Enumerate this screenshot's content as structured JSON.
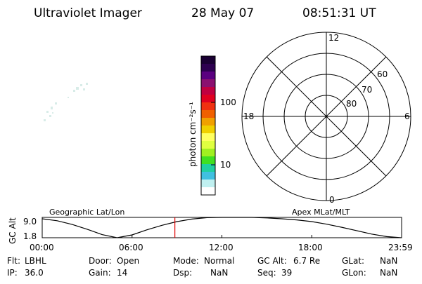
{
  "header": {
    "title": "Ultraviolet Imager",
    "date": "28 May 07",
    "time": "08:51:31 UT"
  },
  "colorbar": {
    "label": "photon cm⁻²s⁻¹",
    "ticks": [
      "100",
      "10"
    ],
    "colors": [
      "#1a0033",
      "#2d0050",
      "#5a0080",
      "#8a1070",
      "#c00040",
      "#e00020",
      "#f03010",
      "#f06000",
      "#f0a000",
      "#f0d000",
      "#ffff60",
      "#e0ff40",
      "#a0f020",
      "#40e020",
      "#20d0a0",
      "#40c0e0",
      "#c0f0f0",
      "#ffffff"
    ]
  },
  "polar": {
    "mlt_labels": {
      "top": "12",
      "left": "18",
      "right": "6",
      "bottom": "0"
    },
    "lat_labels": [
      "60",
      "70",
      "80"
    ]
  },
  "orbit": {
    "left_label": "Geographic Lat/Lon",
    "right_label": "Apex MLat/MLT",
    "y_axis_label": "GC Alt",
    "y_ticks": [
      "9.0",
      "1.8"
    ],
    "x_ticks": [
      "00:00",
      "06:00",
      "12:00",
      "18:00",
      "23:59"
    ],
    "marker_color": "#e00000",
    "chart_data": {
      "type": "line",
      "xlabel": "",
      "ylabel": "GC Alt",
      "ylim": [
        1.8,
        9.0
      ],
      "x": [
        0,
        1,
        2,
        3,
        4,
        5,
        6,
        7,
        8,
        9,
        10,
        11,
        12,
        13,
        14,
        15,
        16,
        17,
        18,
        19,
        20,
        21,
        22,
        23,
        23.98
      ],
      "values": [
        8.5,
        7.8,
        6.5,
        4.8,
        2.9,
        1.8,
        2.8,
        4.6,
        6.2,
        7.5,
        8.4,
        8.9,
        9.0,
        9.0,
        9.0,
        8.8,
        8.5,
        8.1,
        7.5,
        6.6,
        5.5,
        4.3,
        3.1,
        2.2,
        1.8
      ],
      "current_time": 8.86
    }
  },
  "status": {
    "row1": [
      {
        "label": "Flt:",
        "value": "LBHL"
      },
      {
        "label": "Door:",
        "value": "Open"
      },
      {
        "label": "Mode:",
        "value": "Normal"
      },
      {
        "label": "GC Alt:",
        "value": "6.7 Re"
      },
      {
        "label": "GLat:",
        "value": "NaN"
      }
    ],
    "row2": [
      {
        "label": "IP:",
        "value": "36.0"
      },
      {
        "label": "Gain:",
        "value": "14"
      },
      {
        "label": "Dsp:",
        "value": "NaN"
      },
      {
        "label": "Seq:",
        "value": "39"
      },
      {
        "label": "GLon:",
        "value": "NaN"
      }
    ]
  }
}
